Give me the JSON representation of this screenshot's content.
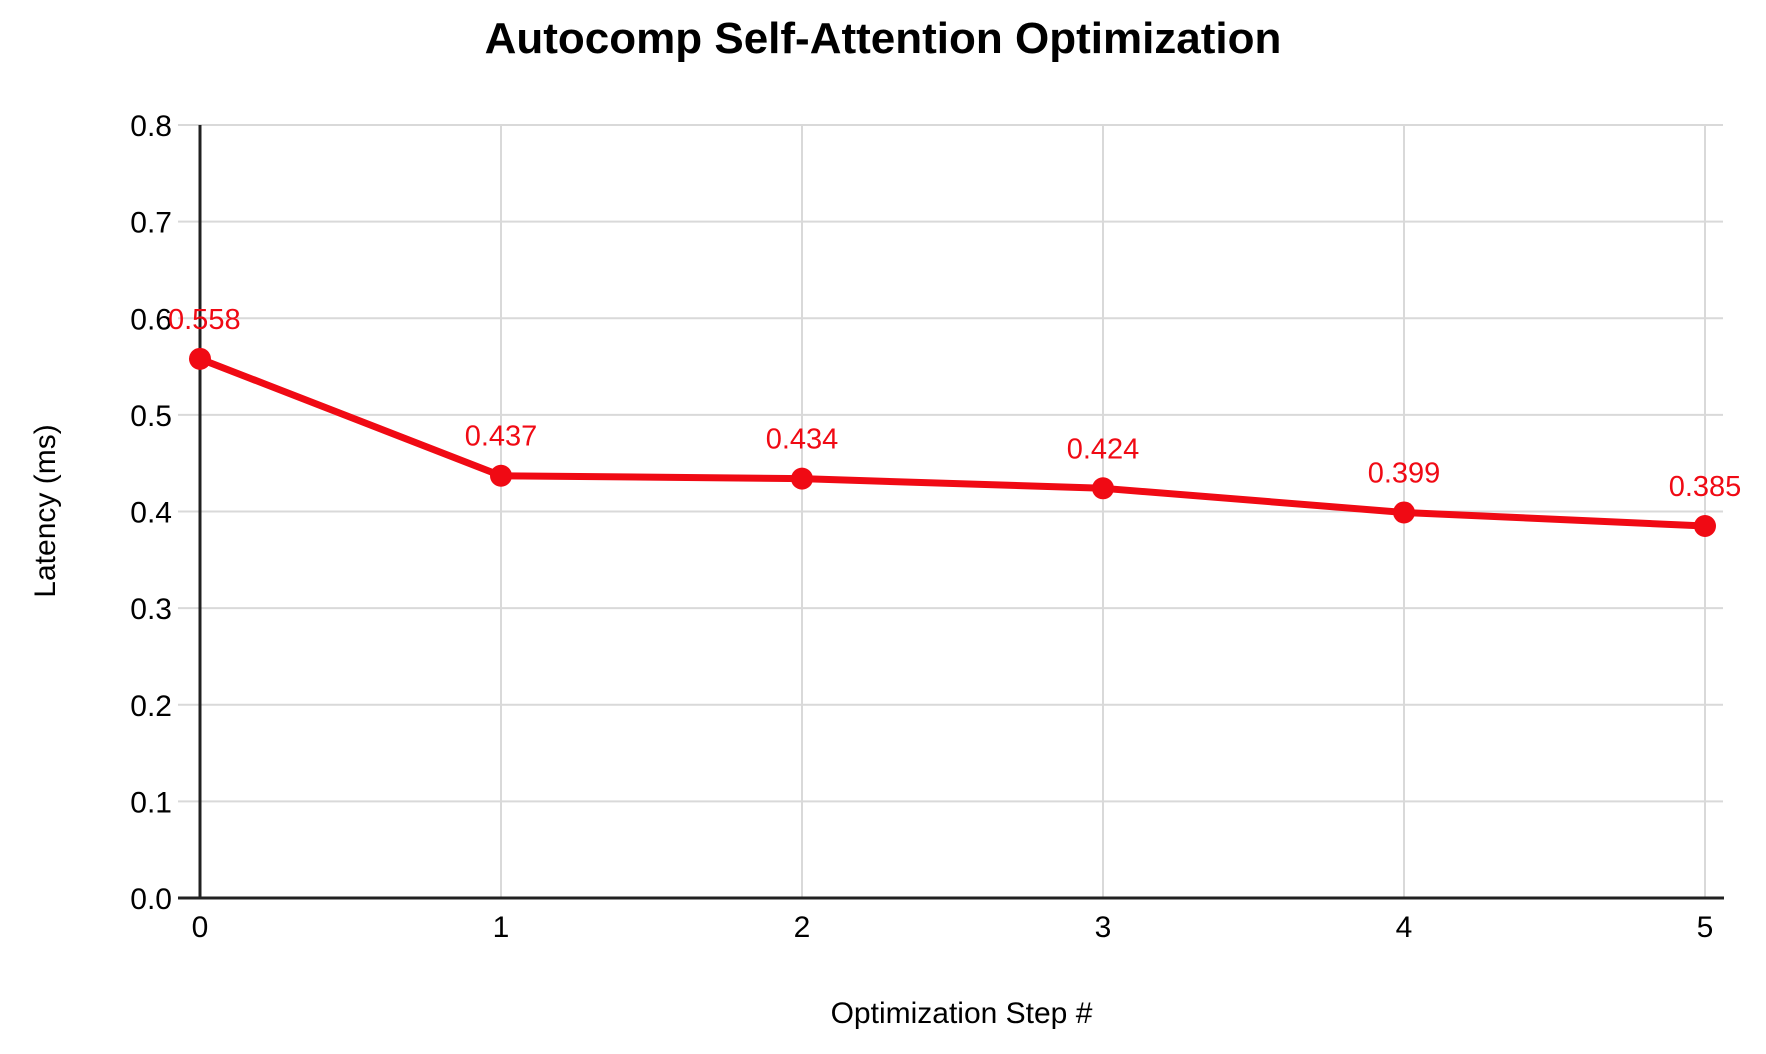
{
  "chart_data": {
    "type": "line",
    "title": "Autocomp Self-Attention Optimization",
    "xlabel": "Optimization Step #",
    "ylabel": "Latency (ms)",
    "x": [
      0,
      1,
      2,
      3,
      4,
      5
    ],
    "values": [
      0.558,
      0.437,
      0.434,
      0.424,
      0.399,
      0.385
    ],
    "data_labels": [
      "0.558",
      "0.437",
      "0.434",
      "0.424",
      "0.399",
      "0.385"
    ],
    "x_tick_labels": [
      "0",
      "1",
      "2",
      "3",
      "4",
      "5"
    ],
    "y_tick_labels": [
      "0.0",
      "0.1",
      "0.2",
      "0.3",
      "0.4",
      "0.5",
      "0.6",
      "0.7",
      "0.8"
    ],
    "xlim": [
      0,
      5
    ],
    "ylim": [
      0,
      0.8
    ],
    "y_tick_step": 0.1,
    "grid": true,
    "legend_position": "none",
    "colors": {
      "series": "#F00A14",
      "axis": "#212121",
      "gridline": "#D9D9D9",
      "text": "#000000",
      "background": "#FFFFFF"
    }
  }
}
